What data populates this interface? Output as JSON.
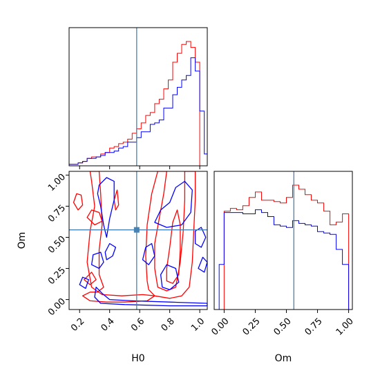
{
  "colors": {
    "series_a": "#ff0000",
    "series_b": "#0000ff",
    "truth": "#4682b4"
  },
  "chart_data": [
    {
      "type": "step-histogram",
      "panel": "H0 marginal",
      "xlim": [
        0.13,
        1.05
      ],
      "truth": 0.58,
      "series": [
        {
          "color": "#ff0000",
          "edges": [
            0.13,
            0.16,
            0.19,
            0.22,
            0.25,
            0.28,
            0.31,
            0.34,
            0.37,
            0.4,
            0.43,
            0.46,
            0.49,
            0.52,
            0.55,
            0.58,
            0.61,
            0.64,
            0.67,
            0.7,
            0.73,
            0.76,
            0.79,
            0.82,
            0.85,
            0.88,
            0.91,
            0.94,
            0.97,
            1.0
          ],
          "heights": [
            0.01,
            0.01,
            0.02,
            0.03,
            0.05,
            0.06,
            0.06,
            0.08,
            0.09,
            0.12,
            0.13,
            0.15,
            0.16,
            0.18,
            0.22,
            0.25,
            0.29,
            0.34,
            0.36,
            0.42,
            0.45,
            0.52,
            0.58,
            0.7,
            0.76,
            0.82,
            0.84,
            0.8,
            0.7
          ]
        },
        {
          "color": "#0000ff",
          "edges": [
            0.13,
            0.16,
            0.19,
            0.22,
            0.25,
            0.28,
            0.31,
            0.34,
            0.37,
            0.4,
            0.43,
            0.46,
            0.49,
            0.52,
            0.55,
            0.58,
            0.61,
            0.64,
            0.67,
            0.7,
            0.73,
            0.76,
            0.79,
            0.82,
            0.85,
            0.88,
            0.91,
            0.94,
            0.97,
            1.0,
            1.03,
            1.05
          ],
          "heights": [
            0.01,
            0.01,
            0.02,
            0.03,
            0.05,
            0.05,
            0.06,
            0.07,
            0.09,
            0.09,
            0.1,
            0.12,
            0.13,
            0.16,
            0.16,
            0.19,
            0.23,
            0.23,
            0.28,
            0.29,
            0.31,
            0.39,
            0.39,
            0.48,
            0.53,
            0.58,
            0.61,
            0.73,
            0.64,
            0.37,
            0.08
          ]
        }
      ]
    },
    {
      "type": "contour",
      "panel": "H0 vs Om",
      "xlabel": "H0",
      "ylabel": "Om",
      "xlim": [
        0.13,
        1.05
      ],
      "ylim": [
        -0.08,
        1.03
      ],
      "x_ticks": [
        "0.2",
        "0.4",
        "0.6",
        "0.8",
        "1.0"
      ],
      "y_ticks": [
        "0.00",
        "0.25",
        "0.50",
        "0.75",
        "1.00"
      ],
      "truth": [
        0.58,
        0.56
      ],
      "contours": [
        {
          "color": "#ff0000",
          "points": [
            [
              0.66,
              0.08
            ],
            [
              0.7,
              0.03
            ],
            [
              0.8,
              0.01
            ],
            [
              0.88,
              0.03
            ],
            [
              0.93,
              0.1
            ],
            [
              0.95,
              0.3
            ],
            [
              0.96,
              0.55
            ],
            [
              0.97,
              0.8
            ],
            [
              0.97,
              1.03
            ],
            [
              0.9,
              1.03
            ],
            [
              0.9,
              0.8
            ],
            [
              0.89,
              0.55
            ],
            [
              0.87,
              0.3
            ],
            [
              0.84,
              0.1
            ],
            [
              0.78,
              0.07
            ],
            [
              0.72,
              0.1
            ],
            [
              0.7,
              0.25
            ],
            [
              0.7,
              0.45
            ],
            [
              0.73,
              0.65
            ],
            [
              0.76,
              0.85
            ],
            [
              0.78,
              1.03
            ],
            [
              0.72,
              1.03
            ],
            [
              0.68,
              0.85
            ],
            [
              0.65,
              0.6
            ],
            [
              0.64,
              0.35
            ],
            [
              0.65,
              0.15
            ]
          ]
        },
        {
          "color": "#ff0000",
          "points": [
            [
              0.78,
              0.15
            ],
            [
              0.82,
              0.13
            ],
            [
              0.86,
              0.2
            ],
            [
              0.87,
              0.4
            ],
            [
              0.87,
              0.6
            ],
            [
              0.85,
              0.72
            ],
            [
              0.82,
              0.62
            ],
            [
              0.8,
              0.42
            ],
            [
              0.78,
              0.25
            ]
          ]
        },
        {
          "color": "#ff0000",
          "points": [
            [
              0.22,
              0.03
            ],
            [
              0.27,
              -0.01
            ],
            [
              0.38,
              -0.02
            ],
            [
              0.5,
              -0.02
            ],
            [
              0.65,
              -0.01
            ],
            [
              0.7,
              0.03
            ],
            [
              0.62,
              0.04
            ],
            [
              0.48,
              0.03
            ],
            [
              0.35,
              0.04
            ],
            [
              0.28,
              0.1
            ],
            [
              0.25,
              0.3
            ],
            [
              0.27,
              0.55
            ],
            [
              0.3,
              0.75
            ],
            [
              0.28,
              0.95
            ],
            [
              0.27,
              1.03
            ],
            [
              0.33,
              1.03
            ],
            [
              0.34,
              0.85
            ],
            [
              0.35,
              0.6
            ],
            [
              0.33,
              0.4
            ],
            [
              0.33,
              0.2
            ],
            [
              0.36,
              0.1
            ],
            [
              0.32,
              0.06
            ],
            [
              0.27,
              0.06
            ]
          ]
        },
        {
          "color": "#ff0000",
          "points": [
            [
              0.16,
              0.78
            ],
            [
              0.19,
              0.72
            ],
            [
              0.22,
              0.76
            ],
            [
              0.21,
              0.84
            ],
            [
              0.18,
              0.85
            ]
          ]
        },
        {
          "color": "#ff0000",
          "points": [
            [
              0.25,
              0.66
            ],
            [
              0.3,
              0.6
            ],
            [
              0.35,
              0.63
            ],
            [
              0.33,
              0.7
            ],
            [
              0.28,
              0.72
            ]
          ]
        },
        {
          "color": "#ff0000",
          "points": [
            [
              0.23,
              0.16
            ],
            [
              0.27,
              0.12
            ],
            [
              0.31,
              0.16
            ],
            [
              0.28,
              0.22
            ]
          ]
        },
        {
          "color": "#ff0000",
          "points": [
            [
              0.43,
              0.8
            ],
            [
              0.45,
              0.88
            ],
            [
              0.46,
              0.76
            ],
            [
              0.44,
              0.72
            ]
          ]
        },
        {
          "color": "#0000ff",
          "points": [
            [
              0.3,
              0.02
            ],
            [
              0.34,
              -0.03
            ],
            [
              0.5,
              -0.04
            ],
            [
              0.8,
              -0.05
            ],
            [
              1.05,
              -0.05
            ],
            [
              1.05,
              -0.03
            ],
            [
              0.8,
              -0.02
            ],
            [
              0.55,
              -0.01
            ],
            [
              0.4,
              0.0
            ],
            [
              0.35,
              0.05
            ],
            [
              0.31,
              0.1
            ]
          ]
        },
        {
          "color": "#0000ff",
          "points": [
            [
              0.33,
              0.92
            ],
            [
              0.38,
              0.98
            ],
            [
              0.43,
              0.95
            ],
            [
              0.43,
              0.8
            ],
            [
              0.4,
              0.65
            ],
            [
              0.38,
              0.5
            ],
            [
              0.36,
              0.6
            ],
            [
              0.34,
              0.75
            ],
            [
              0.32,
              0.85
            ]
          ]
        },
        {
          "color": "#0000ff",
          "points": [
            [
              0.28,
              0.28
            ],
            [
              0.33,
              0.25
            ],
            [
              0.36,
              0.3
            ],
            [
              0.34,
              0.38
            ],
            [
              0.29,
              0.36
            ]
          ]
        },
        {
          "color": "#0000ff",
          "points": [
            [
              0.38,
              0.32
            ],
            [
              0.42,
              0.35
            ],
            [
              0.44,
              0.42
            ],
            [
              0.4,
              0.45
            ],
            [
              0.37,
              0.38
            ]
          ]
        },
        {
          "color": "#0000ff",
          "points": [
            [
              0.7,
              0.62
            ],
            [
              0.78,
              0.58
            ],
            [
              0.88,
              0.6
            ],
            [
              0.94,
              0.7
            ],
            [
              0.95,
              0.88
            ],
            [
              0.9,
              0.95
            ],
            [
              0.84,
              0.9
            ],
            [
              0.8,
              0.78
            ],
            [
              0.74,
              0.72
            ]
          ]
        },
        {
          "color": "#0000ff",
          "points": [
            [
              0.62,
              0.32
            ],
            [
              0.66,
              0.28
            ],
            [
              0.7,
              0.35
            ],
            [
              0.68,
              0.45
            ],
            [
              0.64,
              0.42
            ]
          ]
        },
        {
          "color": "#0000ff",
          "points": [
            [
              0.75,
              0.1
            ],
            [
              0.8,
              0.08
            ],
            [
              0.86,
              0.14
            ],
            [
              0.84,
              0.25
            ],
            [
              0.78,
              0.28
            ],
            [
              0.74,
              0.2
            ]
          ]
        },
        {
          "color": "#0000ff",
          "points": [
            [
              0.97,
              0.45
            ],
            [
              1.01,
              0.42
            ],
            [
              1.04,
              0.5
            ],
            [
              1.01,
              0.58
            ],
            [
              0.97,
              0.55
            ]
          ]
        },
        {
          "color": "#0000ff",
          "points": [
            [
              0.99,
              0.25
            ],
            [
              1.03,
              0.22
            ],
            [
              1.05,
              0.3
            ],
            [
              1.02,
              0.34
            ]
          ]
        },
        {
          "color": "#0000ff",
          "points": [
            [
              0.2,
              0.12
            ],
            [
              0.24,
              0.09
            ],
            [
              0.26,
              0.16
            ],
            [
              0.22,
              0.18
            ]
          ]
        }
      ]
    },
    {
      "type": "step-histogram",
      "panel": "Om marginal",
      "xlabel": "Om",
      "xlim": [
        -0.08,
        1.03
      ],
      "x_ticks": [
        "0.00",
        "0.25",
        "0.50",
        "0.75",
        "1.00"
      ],
      "truth": 0.56,
      "series": [
        {
          "color": "#ff0000",
          "edges": [
            0.0,
            0.05,
            0.1,
            0.15,
            0.2,
            0.25,
            0.3,
            0.35,
            0.4,
            0.45,
            0.5,
            0.55,
            0.6,
            0.65,
            0.7,
            0.75,
            0.8,
            0.85,
            0.9,
            0.95,
            1.0
          ],
          "heights": [
            0.72,
            0.74,
            0.73,
            0.76,
            0.82,
            0.86,
            0.8,
            0.8,
            0.79,
            0.78,
            0.82,
            0.91,
            0.88,
            0.84,
            0.8,
            0.78,
            0.72,
            0.62,
            0.64,
            0.7
          ]
        },
        {
          "color": "#0000ff",
          "edges": [
            -0.04,
            0.0,
            0.05,
            0.1,
            0.15,
            0.2,
            0.25,
            0.3,
            0.35,
            0.4,
            0.45,
            0.5,
            0.55,
            0.6,
            0.65,
            0.7,
            0.75,
            0.8,
            0.85,
            0.9,
            0.95,
            1.0
          ],
          "heights": [
            0.33,
            0.71,
            0.71,
            0.71,
            0.7,
            0.7,
            0.73,
            0.71,
            0.68,
            0.62,
            0.61,
            0.6,
            0.65,
            0.63,
            0.62,
            0.61,
            0.57,
            0.56,
            0.55,
            0.44,
            0.33
          ]
        }
      ]
    }
  ]
}
